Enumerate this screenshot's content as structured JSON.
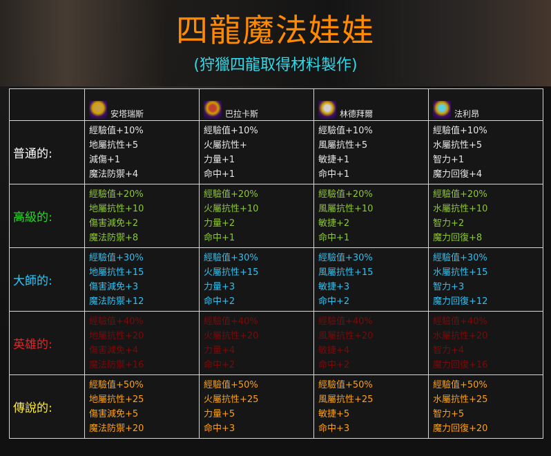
{
  "title": "四龍魔法娃娃",
  "subtitle": "(狩獵四龍取得材料製作)",
  "colors": {
    "title": "#ff8a00",
    "subtitle": "#2fd9e8"
  },
  "dragons": [
    {
      "name": "安塔瑞斯",
      "icon": "earth-dragon-doll-icon",
      "tint": "#c8a040"
    },
    {
      "name": "巴拉卡斯",
      "icon": "fire-dragon-doll-icon",
      "tint": "#c04030"
    },
    {
      "name": "林德拜爾",
      "icon": "wind-dragon-doll-icon",
      "tint": "#d0d0d0"
    },
    {
      "name": "法利昂",
      "icon": "water-dragon-doll-icon",
      "tint": "#60d0e0"
    }
  ],
  "tiers": [
    {
      "label": "普通的:",
      "label_color": "#ffffff",
      "text_color": "#e6e6e6",
      "stats": [
        [
          "經驗值+10%",
          "地屬抗性+5",
          "減傷+1",
          "魔法防禦+4"
        ],
        [
          "經驗值+10%",
          "火屬抗性+",
          "力量+1",
          "命中+1"
        ],
        [
          "經驗值+10%",
          "風屬抗性+5",
          "敏捷+1",
          "命中+1"
        ],
        [
          "經驗值+10%",
          "水屬抗性+5",
          "智力+1",
          "魔力回復+4"
        ]
      ]
    },
    {
      "label": "高級的:",
      "label_color": "#22dd22",
      "text_color": "#8cc832",
      "stats": [
        [
          "經驗值+20%",
          "地屬抗性+10",
          "傷害減免+2",
          "魔法防禦+8"
        ],
        [
          "經驗值+20%",
          "火屬抗性+10",
          "力量+2",
          "命中+1"
        ],
        [
          "經驗值+20%",
          "風屬抗性+10",
          "敏捷+2",
          "命中+1"
        ],
        [
          "經驗值+20%",
          "水屬抗性+10",
          "智力+2",
          "魔力回復+8"
        ]
      ]
    },
    {
      "label": "大師的:",
      "label_color": "#22ccff",
      "text_color": "#30c0f0",
      "stats": [
        [
          "經驗值+30%",
          "地屬抗性+15",
          "傷害減免+3",
          "魔法防禦+12"
        ],
        [
          "經驗值+30%",
          "火屬抗性+15",
          "力量+3",
          "命中+2"
        ],
        [
          "經驗值+30%",
          "風屬抗性+15",
          "敏捷+3",
          "命中+2"
        ],
        [
          "經驗值+30%",
          "水屬抗性+15",
          "智力+3",
          "魔力回復+12"
        ]
      ]
    },
    {
      "label": "英雄的:",
      "label_color": "#ee2222",
      "text_color": "#7a0a0a",
      "stats": [
        [
          "經驗值+40%",
          "地屬抗性+20",
          "傷害減免+4",
          "魔法防禦+16"
        ],
        [
          "經驗值+40%",
          "火屬抗性+20",
          "力量+4",
          "命中+2"
        ],
        [
          "經驗值+40%",
          "風屬抗性+20",
          "敏捷+4",
          "命中+2"
        ],
        [
          "經驗值+40%",
          "水屬抗性+20",
          "智力+4",
          "魔力回復+16"
        ]
      ]
    },
    {
      "label": "傳說的:",
      "label_color": "#ffee33",
      "text_color": "#ffa010",
      "stats": [
        [
          "經驗值+50%",
          "地屬抗性+25",
          "傷害減免+5",
          "魔法防禦+20"
        ],
        [
          "經驗值+50%",
          "火屬抗性+25",
          "力量+5",
          "命中+3"
        ],
        [
          "經驗值+50%",
          "風屬抗性+25",
          "敏捷+5",
          "命中+3"
        ],
        [
          "經驗值+50%",
          "水屬抗性+25",
          "智力+5",
          "魔力回復+20"
        ]
      ]
    }
  ]
}
